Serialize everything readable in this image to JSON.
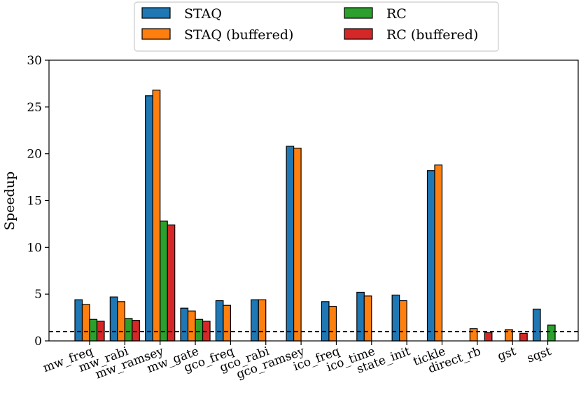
{
  "chart_data": {
    "type": "bar",
    "title": "",
    "xlabel": "",
    "ylabel": "Speedup",
    "ylim": [
      0,
      30
    ],
    "yticks": [
      0,
      5,
      10,
      15,
      20,
      25,
      30
    ],
    "reference_line": 1,
    "legend_position": "top-center",
    "categories": [
      "mw_freq",
      "mw_rabi",
      "mw_ramsey",
      "mw_gate",
      "gco_freq",
      "gco_rabi",
      "gco_ramsey",
      "ico_freq",
      "ico_time",
      "state_init",
      "tickle",
      "direct_rb",
      "gst",
      "sqst"
    ],
    "series": [
      {
        "name": "STAQ",
        "color": "#1f77b4",
        "values": [
          4.4,
          4.7,
          26.2,
          3.5,
          4.3,
          4.4,
          20.8,
          4.2,
          5.2,
          4.9,
          18.2,
          null,
          null,
          3.4
        ]
      },
      {
        "name": "STAQ (buffered)",
        "color": "#ff7f0e",
        "values": [
          3.9,
          4.2,
          26.8,
          3.2,
          3.8,
          4.4,
          20.6,
          3.7,
          4.8,
          4.3,
          18.8,
          1.3,
          1.2,
          null
        ]
      },
      {
        "name": "RC",
        "color": "#2ca02c",
        "values": [
          2.3,
          2.4,
          12.8,
          2.3,
          null,
          null,
          null,
          null,
          null,
          null,
          null,
          null,
          null,
          1.7
        ]
      },
      {
        "name": "RC (buffered)",
        "color": "#d62728",
        "values": [
          2.1,
          2.2,
          12.4,
          2.1,
          null,
          null,
          null,
          null,
          null,
          null,
          null,
          0.9,
          0.8,
          null
        ]
      }
    ]
  }
}
